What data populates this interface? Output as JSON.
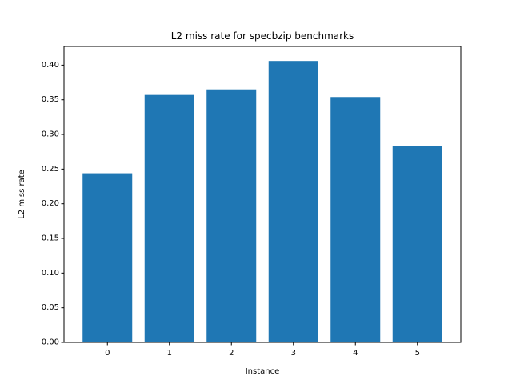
{
  "chart_data": {
    "type": "bar",
    "title": "L2 miss rate for specbzip benchmarks",
    "xlabel": "Instance",
    "ylabel": "L2 miss rate",
    "categories": [
      "0",
      "1",
      "2",
      "3",
      "4",
      "5"
    ],
    "values": [
      0.244,
      0.357,
      0.365,
      0.406,
      0.354,
      0.283
    ],
    "ylim": [
      0,
      0.427
    ],
    "yticks": [
      0.0,
      0.05,
      0.1,
      0.15,
      0.2,
      0.25,
      0.3,
      0.35,
      0.4
    ],
    "ytick_labels": [
      "0.00",
      "0.05",
      "0.10",
      "0.15",
      "0.20",
      "0.25",
      "0.30",
      "0.35",
      "0.40"
    ],
    "grid": false,
    "bar_color": "#1f77b4"
  }
}
